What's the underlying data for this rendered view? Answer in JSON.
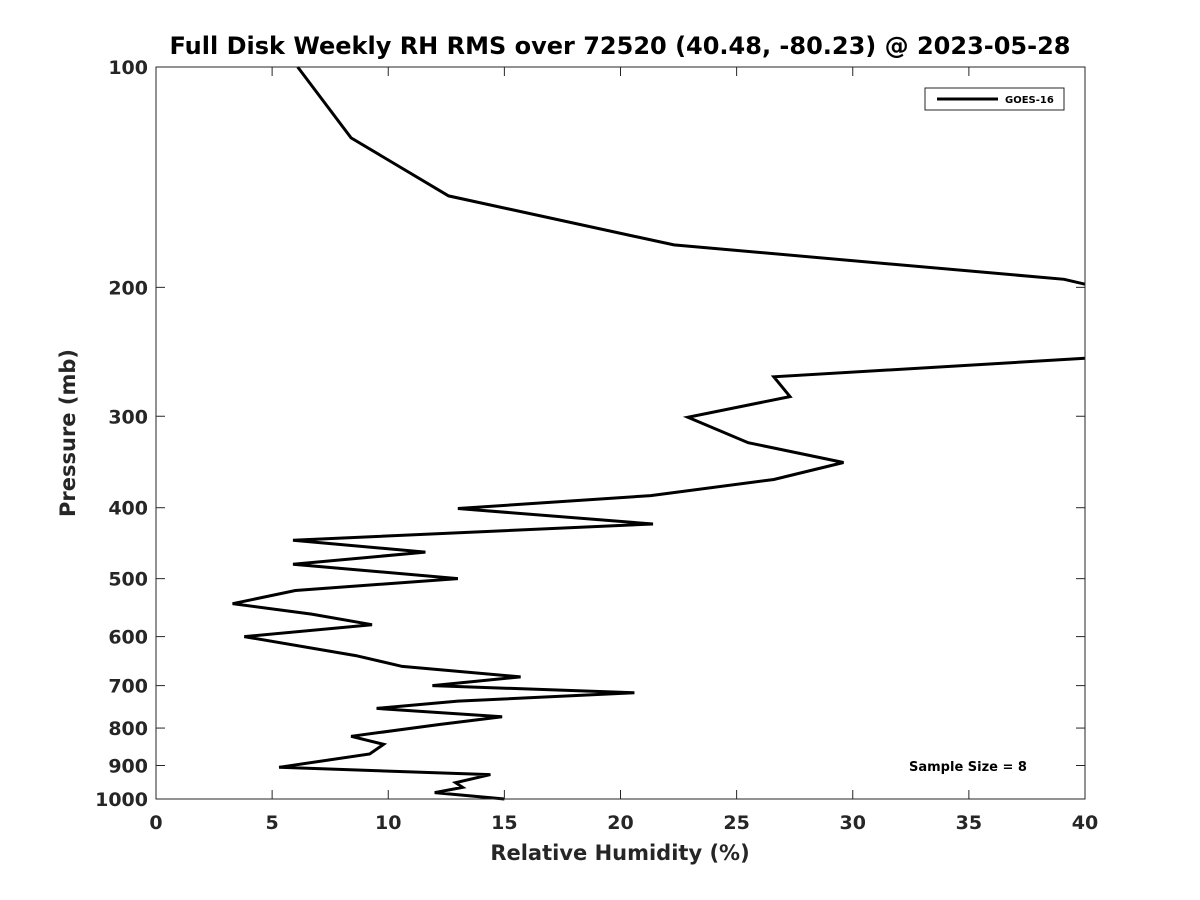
{
  "chart_data": {
    "type": "line",
    "title": "Full Disk Weekly RH RMS over 72520 (40.48, -80.23) @ 2023-05-28",
    "xlabel": "Relative Humidity (%)",
    "ylabel": "Pressure (mb)",
    "xlim": [
      0,
      40
    ],
    "ylim": [
      100,
      1000
    ],
    "yscale": "log",
    "y_reversed": true,
    "x_ticks": [
      0,
      5,
      10,
      15,
      20,
      25,
      30,
      35,
      40
    ],
    "x_tick_labels": [
      "0",
      "5",
      "10",
      "15",
      "20",
      "25",
      "30",
      "35",
      "40"
    ],
    "y_ticks": [
      100,
      200,
      300,
      400,
      500,
      600,
      700,
      800,
      900,
      1000
    ],
    "y_tick_labels": [
      "100",
      "200",
      "300",
      "400",
      "500",
      "600",
      "700",
      "800",
      "900",
      "1000"
    ],
    "grid": false,
    "legend_position": "top-right",
    "annotation": "Sample Size = 8",
    "series": [
      {
        "name": "GOES-16",
        "color": "#000000",
        "segments": [
          {
            "x": [
              6.1,
              8.4,
              12.6,
              22.3,
              39.1,
              40.0
            ],
            "y": [
              100,
              125,
              150,
              175,
              195,
              198
            ]
          },
          {
            "x": [
              40.0,
              26.6,
              27.3,
              22.9,
              25.5,
              29.6,
              26.6,
              21.3,
              13.0,
              21.4,
              5.9,
              11.6,
              5.9,
              13.0,
              6.0,
              3.3,
              6.7,
              9.3,
              3.8,
              8.6,
              10.6,
              15.7,
              11.9,
              20.6,
              13.0,
              9.5,
              14.9,
              12.2,
              8.4,
              9.8,
              9.2,
              5.3,
              14.4,
              12.9,
              13.2,
              12.0,
              15.0
            ],
            "y": [
              250,
              265,
              282,
              301,
              326,
              347,
              366,
              385,
              401,
              421,
              443,
              460,
              478,
              500,
              519,
              541,
              559,
              578,
              600,
              637,
              659,
              681,
              700,
              716,
              735,
              752,
              772,
              791,
              821,
              842,
              868,
              905,
              926,
              950,
              964,
              980,
              1000
            ]
          }
        ]
      }
    ]
  }
}
